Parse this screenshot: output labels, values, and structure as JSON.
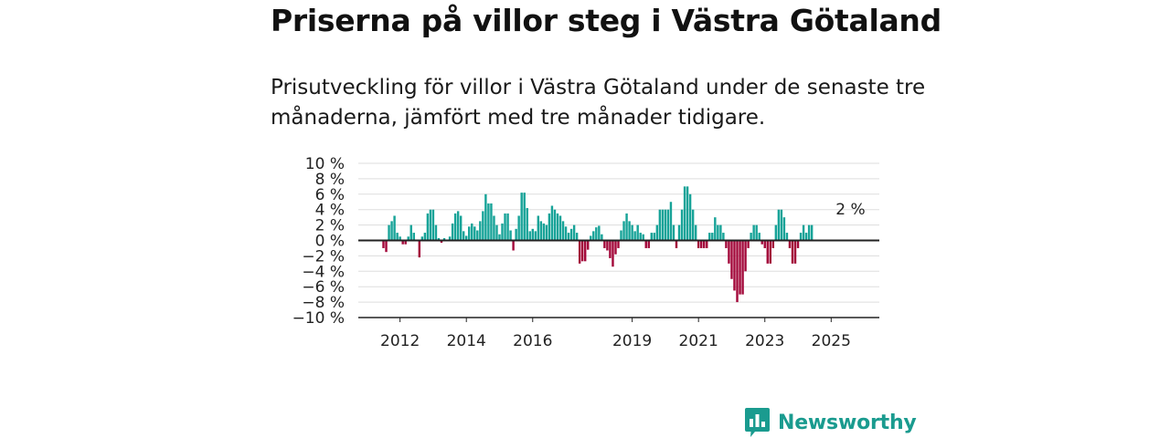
{
  "title": "Priserna på villor steg i Västra Götaland",
  "subtitle": "Prisutveckling för villor i Västra Götaland under de senaste tre månaderna, jämfört med tre månader tidigare.",
  "brand": {
    "name": "Newsworthy",
    "logo_icon": "newsworthy-bar-chart-icon"
  },
  "colors": {
    "positive": "#17a398",
    "negative": "#a3083a",
    "grid": "#dddddd",
    "zero_line": "#222222",
    "brand": "#1a9b8f"
  },
  "chart_data": {
    "type": "bar",
    "title": "",
    "xlabel": "",
    "ylabel": "",
    "ylim": [
      -10,
      10
    ],
    "y_ticks": [
      -10,
      -8,
      -6,
      -4,
      -2,
      0,
      2,
      4,
      6,
      8,
      10
    ],
    "y_tick_labels": [
      "−10 %",
      "−8 %",
      "−6 %",
      "−4 %",
      "−2 %",
      "0 %",
      "2 %",
      "4 %",
      "6 %",
      "8 %",
      "10 %"
    ],
    "x_tick_labels": [
      "2012",
      "2014",
      "2016",
      "2019",
      "2021",
      "2023",
      "2025"
    ],
    "x_start": "2011-07",
    "x_end": "2025-09",
    "grid": true,
    "annotation": {
      "text": "2 %",
      "at": "2025-08"
    },
    "series": [
      {
        "values": [
          [
            -1,
            -1.5,
            2,
            2.5,
            3.2,
            1,
            0.5,
            -0.5,
            -0.5,
            0.5,
            2,
            1,
            0,
            -2.2,
            0.5,
            1,
            3.5,
            4,
            4,
            2,
            0.3,
            -0.3,
            0.3,
            0,
            0.5,
            2.2,
            3.5,
            3.8,
            3.2,
            1.2,
            0.6,
            1.8,
            2.2,
            1.8,
            1.3,
            2.5,
            3.8,
            6,
            4.8,
            4.8,
            3.2,
            2,
            0.8,
            2.2,
            3.5,
            3.5,
            1.3,
            -1.3,
            1.5,
            3.2,
            6.2,
            6.2,
            4.2,
            1.2,
            1.5,
            1.2,
            3.2,
            2.5,
            2.2,
            2,
            3.5,
            4.5,
            4,
            3.5,
            3.2,
            2.5,
            1.8,
            1,
            1.5,
            2,
            1
          ],
          [
            -3,
            -2.7,
            -2.7,
            -1.2,
            0.6,
            1.2,
            1.7,
            1.9,
            0.8,
            -1,
            -1.3,
            -2.3,
            -3.4,
            -1.8,
            -1,
            1.3,
            2.5,
            3.5,
            2.5,
            2,
            1.2,
            2,
            1,
            0.8,
            -1,
            -1,
            1,
            1,
            2,
            4,
            4,
            4,
            4,
            5,
            2,
            -1,
            2,
            4,
            7,
            7,
            6,
            4,
            2,
            -1,
            -1,
            -1,
            -1,
            1,
            1,
            3,
            2,
            2,
            1,
            -1,
            -3,
            -5,
            -6.5,
            -8,
            -7,
            -7,
            -4,
            -1,
            1,
            2,
            2,
            1,
            -0.5,
            -1,
            -3,
            -3,
            -1
          ],
          [
            2,
            4,
            4,
            3,
            1,
            -1,
            -3,
            -3,
            -1,
            1,
            2,
            1,
            2,
            2
          ]
        ]
      }
    ]
  }
}
